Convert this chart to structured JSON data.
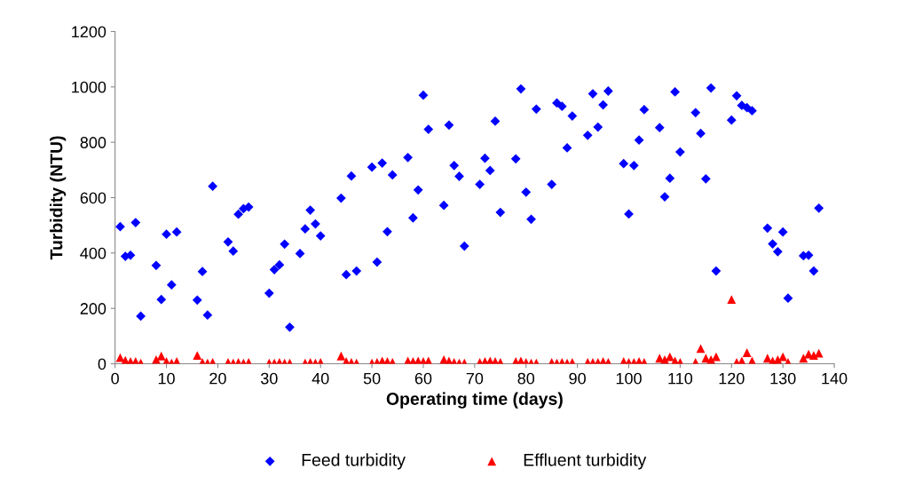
{
  "chart_data": {
    "type": "scatter",
    "xlabel": "Operating time (days)",
    "ylabel": "Turbidity (NTU)",
    "xlim": [
      0,
      140
    ],
    "xticks": [
      0,
      10,
      20,
      30,
      40,
      50,
      60,
      70,
      80,
      90,
      100,
      110,
      120,
      130,
      140
    ],
    "ylim": [
      0,
      1200
    ],
    "yticks": [
      0,
      200,
      400,
      600,
      800,
      1000,
      1200
    ],
    "grid": false,
    "legend": "bottom",
    "series": [
      {
        "name": "Feed turbidity",
        "color": "#0000ff",
        "marker": "diamond",
        "x": [
          1,
          2,
          3,
          4,
          5,
          8,
          9,
          10,
          11,
          12,
          16,
          17,
          18,
          19,
          22,
          23,
          24,
          25,
          26,
          30,
          31,
          32,
          33,
          34,
          36,
          37,
          38,
          39,
          40,
          44,
          45,
          46,
          47,
          50,
          51,
          52,
          53,
          54,
          57,
          58,
          59,
          60,
          61,
          64,
          65,
          66,
          67,
          68,
          71,
          72,
          73,
          74,
          75,
          78,
          79,
          80,
          81,
          82,
          85,
          86,
          87,
          88,
          89,
          92,
          93,
          94,
          95,
          96,
          99,
          100,
          101,
          102,
          103,
          106,
          107,
          108,
          109,
          110,
          113,
          114,
          115,
          116,
          117,
          120,
          121,
          122,
          123,
          124,
          127,
          128,
          129,
          130,
          131,
          134,
          135,
          136,
          137
        ],
        "values": [
          495,
          388,
          392,
          510,
          172,
          355,
          232,
          468,
          285,
          476,
          230,
          333,
          176,
          641,
          440,
          407,
          540,
          560,
          566,
          255,
          340,
          357,
          432,
          132,
          398,
          487,
          555,
          505,
          462,
          598,
          322,
          678,
          335,
          710,
          367,
          725,
          477,
          682,
          745,
          527,
          628,
          970,
          847,
          572,
          862,
          716,
          677,
          425,
          648,
          742,
          698,
          876,
          547,
          740,
          993,
          620,
          522,
          920,
          648,
          942,
          930,
          780,
          895,
          825,
          975,
          855,
          935,
          985,
          723,
          541,
          716,
          808,
          918,
          853,
          603,
          670,
          982,
          765,
          907,
          832,
          668,
          996,
          335,
          880,
          968,
          933,
          925,
          914,
          490,
          433,
          405,
          476,
          237,
          390,
          392,
          335,
          562
        ]
      },
      {
        "name": "Effluent turbidity",
        "color": "#ff0000",
        "marker": "triangle",
        "x": [
          1,
          2,
          3,
          4,
          5,
          8,
          9,
          10,
          11,
          12,
          16,
          17,
          18,
          19,
          22,
          23,
          24,
          25,
          26,
          30,
          31,
          32,
          33,
          34,
          37,
          38,
          39,
          40,
          44,
          45,
          46,
          47,
          50,
          51,
          52,
          53,
          54,
          57,
          58,
          59,
          60,
          61,
          64,
          65,
          66,
          67,
          68,
          71,
          72,
          73,
          74,
          75,
          78,
          79,
          80,
          81,
          82,
          85,
          86,
          87,
          88,
          89,
          92,
          93,
          94,
          95,
          96,
          99,
          100,
          101,
          102,
          103,
          106,
          107,
          108,
          109,
          110,
          113,
          114,
          115,
          116,
          117,
          120,
          121,
          122,
          123,
          124,
          127,
          128,
          129,
          130,
          131,
          134,
          135,
          136,
          137
        ],
        "values": [
          22,
          12,
          8,
          8,
          3,
          15,
          28,
          8,
          3,
          8,
          30,
          5,
          3,
          5,
          5,
          3,
          5,
          3,
          5,
          3,
          3,
          5,
          3,
          3,
          3,
          5,
          3,
          5,
          28,
          8,
          5,
          3,
          3,
          5,
          10,
          8,
          5,
          10,
          8,
          10,
          8,
          10,
          15,
          10,
          5,
          3,
          3,
          5,
          8,
          10,
          8,
          5,
          8,
          10,
          5,
          3,
          3,
          5,
          3,
          5,
          3,
          5,
          5,
          5,
          5,
          8,
          5,
          8,
          5,
          5,
          8,
          5,
          20,
          15,
          25,
          10,
          5,
          5,
          55,
          20,
          15,
          25,
          232,
          5,
          10,
          40,
          10,
          20,
          10,
          15,
          25,
          5,
          20,
          35,
          30,
          38
        ]
      }
    ]
  }
}
